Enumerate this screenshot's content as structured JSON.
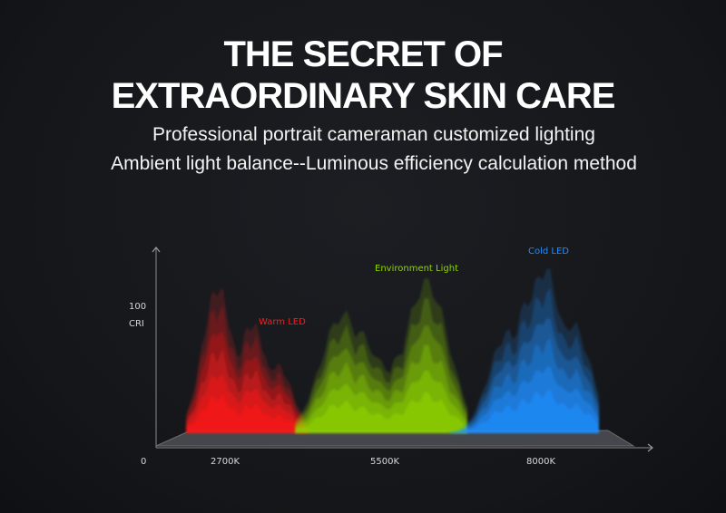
{
  "headline": {
    "line1": "THE SECRET OF",
    "line2": "EXTRAORDINARY SKIN CARE"
  },
  "subtitle": {
    "line1": "Professional portrait cameraman customized lighting",
    "line2": "Ambient light balance--Luminous efficiency calculation method"
  },
  "chart_data": {
    "type": "area",
    "x_tick_labels": [
      "2700K",
      "5500K",
      "8000K"
    ],
    "origin_label": "0",
    "y_tick_value": "100",
    "ylabel": "CRI",
    "series": [
      {
        "name": "Warm LED",
        "color": "#ff1a1a",
        "center": "2700K"
      },
      {
        "name": "Environment Light",
        "color": "#8fd400",
        "center": "5500K"
      },
      {
        "name": "Cold LED",
        "color": "#1e8fff",
        "center": "8000K"
      }
    ]
  }
}
